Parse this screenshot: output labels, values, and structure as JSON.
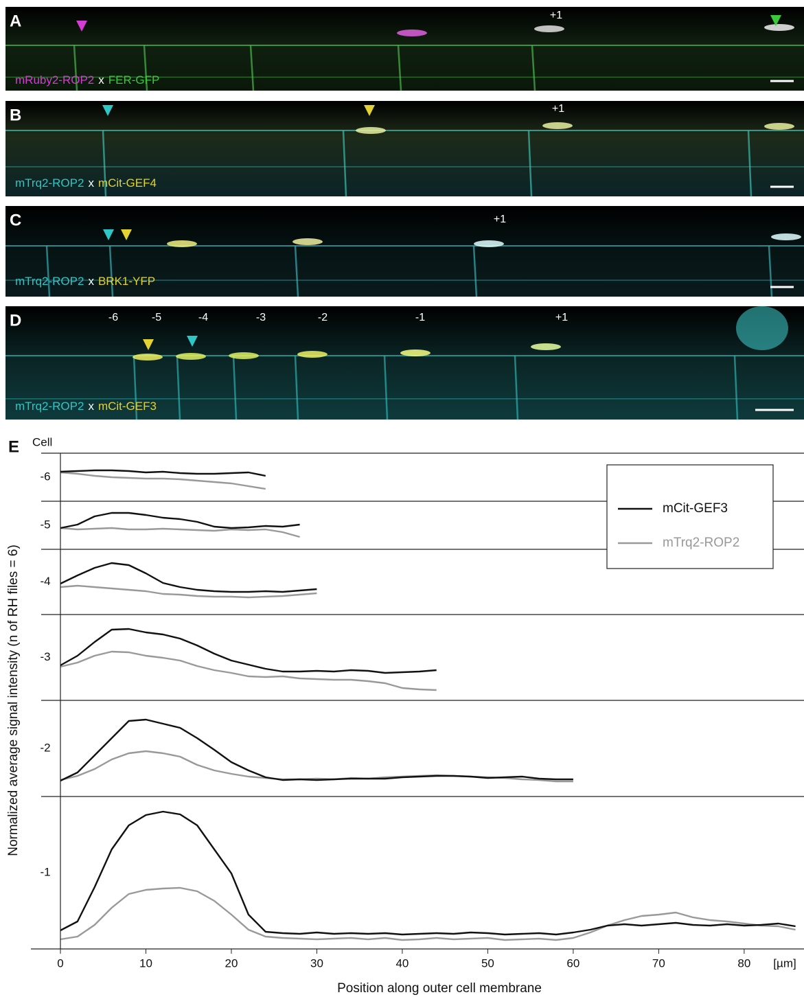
{
  "panels": [
    {
      "label": "A",
      "numbers": [
        "+1"
      ],
      "caption": [
        {
          "text": "mRuby2-ROP2",
          "color": "#d43cd4"
        },
        {
          "text": "x",
          "color": "#ffffff"
        },
        {
          "text": "FER-GFP",
          "color": "#3cc83c"
        }
      ]
    },
    {
      "label": "B",
      "numbers": [
        "+1"
      ],
      "caption": [
        {
          "text": "mTrq2-ROP2",
          "color": "#2ec6c6"
        },
        {
          "text": "x",
          "color": "#ffffff"
        },
        {
          "text": "mCit-GEF4",
          "color": "#e2d232"
        }
      ]
    },
    {
      "label": "C",
      "numbers": [
        "+1"
      ],
      "caption": [
        {
          "text": "mTrq2-ROP2",
          "color": "#2ec6c6"
        },
        {
          "text": "x",
          "color": "#ffffff"
        },
        {
          "text": "BRK1-YFP",
          "color": "#e2d232"
        }
      ]
    },
    {
      "label": "D",
      "numbers": [
        "-6",
        "-5",
        "-4",
        "-3",
        "-2",
        "-1",
        "+1"
      ],
      "caption": [
        {
          "text": "mTrq2-ROP2",
          "color": "#2ec6c6"
        },
        {
          "text": "x",
          "color": "#ffffff"
        },
        {
          "text": "mCit-GEF3",
          "color": "#e2d232"
        }
      ]
    }
  ],
  "chart_data": {
    "type": "line",
    "panel_label": "E",
    "row_header": "Cell",
    "ylabel": "Normalized average signal intensity (n of RH files = 6)",
    "xlabel": "Position along outer cell membrane",
    "xunit": "[µm]",
    "xlim": [
      0,
      87
    ],
    "xticks": [
      0,
      10,
      20,
      30,
      40,
      50,
      60,
      70,
      80
    ],
    "series": [
      {
        "name": "mCit-GEF3",
        "color": "#111111"
      },
      {
        "name": "mTrq2-ROP2",
        "color": "#999999"
      }
    ],
    "rows": [
      {
        "label": "-6",
        "ylim": [
          0,
          7
        ],
        "x": [
          0,
          2,
          4,
          6,
          8,
          10,
          12,
          14,
          16,
          18,
          20,
          22,
          24
        ],
        "series": [
          {
            "values": [
              4.3,
              4.4,
              4.5,
              4.5,
              4.4,
              4.2,
              4.3,
              4.1,
              4.0,
              4.0,
              4.1,
              4.2,
              3.7
            ]
          },
          {
            "values": [
              4.2,
              4.0,
              3.7,
              3.5,
              3.4,
              3.3,
              3.3,
              3.2,
              3.0,
              2.8,
              2.6,
              2.2,
              1.8
            ]
          }
        ]
      },
      {
        "label": "-5",
        "ylim": [
          0,
          7
        ],
        "x": [
          0,
          2,
          4,
          6,
          8,
          10,
          12,
          14,
          16,
          18,
          20,
          22,
          24,
          26,
          28
        ],
        "series": [
          {
            "values": [
              3.1,
              3.6,
              4.8,
              5.3,
              5.3,
              5.0,
              4.6,
              4.4,
              4.0,
              3.3,
              3.1,
              3.2,
              3.4,
              3.3,
              3.6
            ]
          },
          {
            "values": [
              3.1,
              2.9,
              3.0,
              3.1,
              2.9,
              2.9,
              3.0,
              2.9,
              2.8,
              2.7,
              2.9,
              2.8,
              2.9,
              2.5,
              1.8
            ]
          }
        ]
      },
      {
        "label": "-4",
        "ylim": [
          0,
          9.5
        ],
        "x": [
          0,
          2,
          4,
          6,
          8,
          10,
          12,
          14,
          16,
          18,
          20,
          22,
          24,
          26,
          28,
          30
        ],
        "series": [
          {
            "values": [
              4.5,
              5.7,
              6.8,
              7.5,
              7.2,
              6.0,
              4.6,
              4.0,
              3.6,
              3.4,
              3.3,
              3.3,
              3.4,
              3.3,
              3.5,
              3.7
            ]
          },
          {
            "values": [
              4.0,
              4.2,
              4.0,
              3.8,
              3.6,
              3.4,
              3.0,
              2.9,
              2.7,
              2.6,
              2.6,
              2.5,
              2.6,
              2.7,
              2.9,
              3.1
            ]
          }
        ]
      },
      {
        "label": "-3",
        "ylim": [
          0,
          12.5
        ],
        "x": [
          0,
          2,
          4,
          6,
          8,
          10,
          12,
          14,
          16,
          18,
          20,
          22,
          24,
          26,
          28,
          30,
          32,
          34,
          36,
          38,
          40,
          42,
          44
        ],
        "series": [
          {
            "values": [
              5.1,
              6.5,
              8.5,
              10.3,
              10.4,
              9.9,
              9.6,
              9.0,
              8.0,
              6.8,
              5.8,
              5.2,
              4.6,
              4.2,
              4.2,
              4.3,
              4.2,
              4.4,
              4.3,
              4.0,
              4.1,
              4.2,
              4.4
            ]
          },
          {
            "values": [
              4.9,
              5.5,
              6.5,
              7.1,
              7.0,
              6.5,
              6.2,
              5.8,
              5.0,
              4.4,
              4.0,
              3.5,
              3.4,
              3.5,
              3.2,
              3.1,
              3.0,
              3.0,
              2.8,
              2.5,
              1.8,
              1.6,
              1.5
            ]
          }
        ]
      },
      {
        "label": "-2",
        "ylim": [
          0,
          14
        ],
        "x": [
          0,
          2,
          4,
          6,
          8,
          10,
          12,
          14,
          16,
          18,
          20,
          22,
          24,
          26,
          28,
          30,
          32,
          34,
          36,
          38,
          40,
          42,
          44,
          46,
          48,
          50,
          52,
          54,
          56,
          58,
          60
        ],
        "series": [
          {
            "values": [
              2.3,
              3.5,
              6.0,
              8.5,
              11.0,
              11.2,
              10.6,
              10.0,
              8.5,
              6.8,
              5.0,
              3.8,
              2.8,
              2.4,
              2.5,
              2.4,
              2.5,
              2.6,
              2.6,
              2.6,
              2.8,
              2.9,
              3.0,
              3.0,
              2.9,
              2.7,
              2.8,
              2.9,
              2.6,
              2.5,
              2.5
            ]
          },
          {
            "values": [
              2.4,
              3.0,
              4.0,
              5.4,
              6.3,
              6.6,
              6.3,
              5.8,
              4.6,
              3.8,
              3.3,
              2.9,
              2.7,
              2.5,
              2.5,
              2.6,
              2.5,
              2.7,
              2.6,
              2.8,
              2.9,
              3.0,
              3.1,
              3.0,
              2.9,
              2.8,
              2.7,
              2.5,
              2.4,
              2.2,
              2.2
            ]
          }
        ]
      },
      {
        "label": "-1",
        "ylim": [
          0,
          22.2
        ],
        "x": [
          0,
          2,
          4,
          6,
          8,
          10,
          12,
          14,
          16,
          18,
          20,
          22,
          24,
          26,
          28,
          30,
          32,
          34,
          36,
          38,
          40,
          42,
          44,
          46,
          48,
          50,
          52,
          54,
          56,
          58,
          60,
          62,
          64,
          66,
          68,
          70,
          72,
          74,
          76,
          78,
          80,
          82,
          84,
          86
        ],
        "series": [
          {
            "values": [
              2.7,
              4.0,
              9.0,
              14.5,
              18.0,
              19.5,
              20.0,
              19.6,
              18.0,
              14.5,
              11.0,
              5.0,
              2.5,
              2.3,
              2.2,
              2.4,
              2.2,
              2.3,
              2.2,
              2.3,
              2.1,
              2.2,
              2.3,
              2.2,
              2.4,
              2.3,
              2.1,
              2.2,
              2.3,
              2.1,
              2.4,
              2.8,
              3.4,
              3.6,
              3.4,
              3.6,
              3.8,
              3.5,
              3.4,
              3.6,
              3.4,
              3.5,
              3.7,
              3.3
            ]
          },
          {
            "values": [
              1.4,
              1.8,
              3.5,
              6.0,
              8.0,
              8.6,
              8.8,
              8.9,
              8.4,
              7.0,
              5.0,
              2.8,
              1.8,
              1.6,
              1.5,
              1.4,
              1.5,
              1.6,
              1.4,
              1.6,
              1.3,
              1.4,
              1.6,
              1.4,
              1.5,
              1.6,
              1.3,
              1.4,
              1.5,
              1.3,
              1.6,
              2.4,
              3.4,
              4.2,
              4.8,
              5.0,
              5.3,
              4.6,
              4.2,
              4.0,
              3.7,
              3.4,
              3.3,
              2.8
            ]
          }
        ]
      }
    ]
  }
}
